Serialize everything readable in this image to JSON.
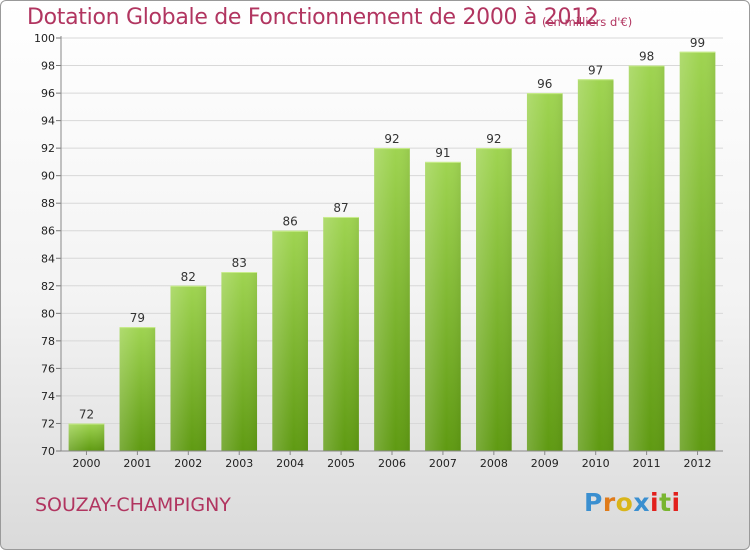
{
  "header": {
    "title": "Dotation Globale de Fonctionnement de 2000 à 2012",
    "unit_note": "(en milliers d'€)"
  },
  "footer": {
    "commune": "SOUZAY-CHAMPIGNY",
    "logo": {
      "text": "Proxiti",
      "colors": [
        "#3a8fd0",
        "#e07b1a",
        "#d9b51a",
        "#3a8fd0",
        "#e2201c",
        "#79b530",
        "#e2201c"
      ]
    }
  },
  "colors": {
    "title": "#b13560",
    "bar_light": "#9fd451",
    "bar_dark": "#5f9a12",
    "grid": "#d8d8d8",
    "axis_text": "#222222"
  },
  "chart_data": {
    "type": "bar",
    "categories": [
      "2000",
      "2001",
      "2002",
      "2003",
      "2004",
      "2005",
      "2006",
      "2007",
      "2008",
      "2009",
      "2010",
      "2011",
      "2012"
    ],
    "values": [
      72,
      79,
      82,
      83,
      86,
      87,
      92,
      91,
      92,
      96,
      97,
      98,
      99
    ],
    "ylim": [
      70,
      100
    ],
    "yticks": [
      70,
      72,
      74,
      76,
      78,
      80,
      82,
      84,
      86,
      88,
      90,
      92,
      94,
      96,
      98,
      100
    ],
    "grid": true,
    "data_labels": true
  }
}
